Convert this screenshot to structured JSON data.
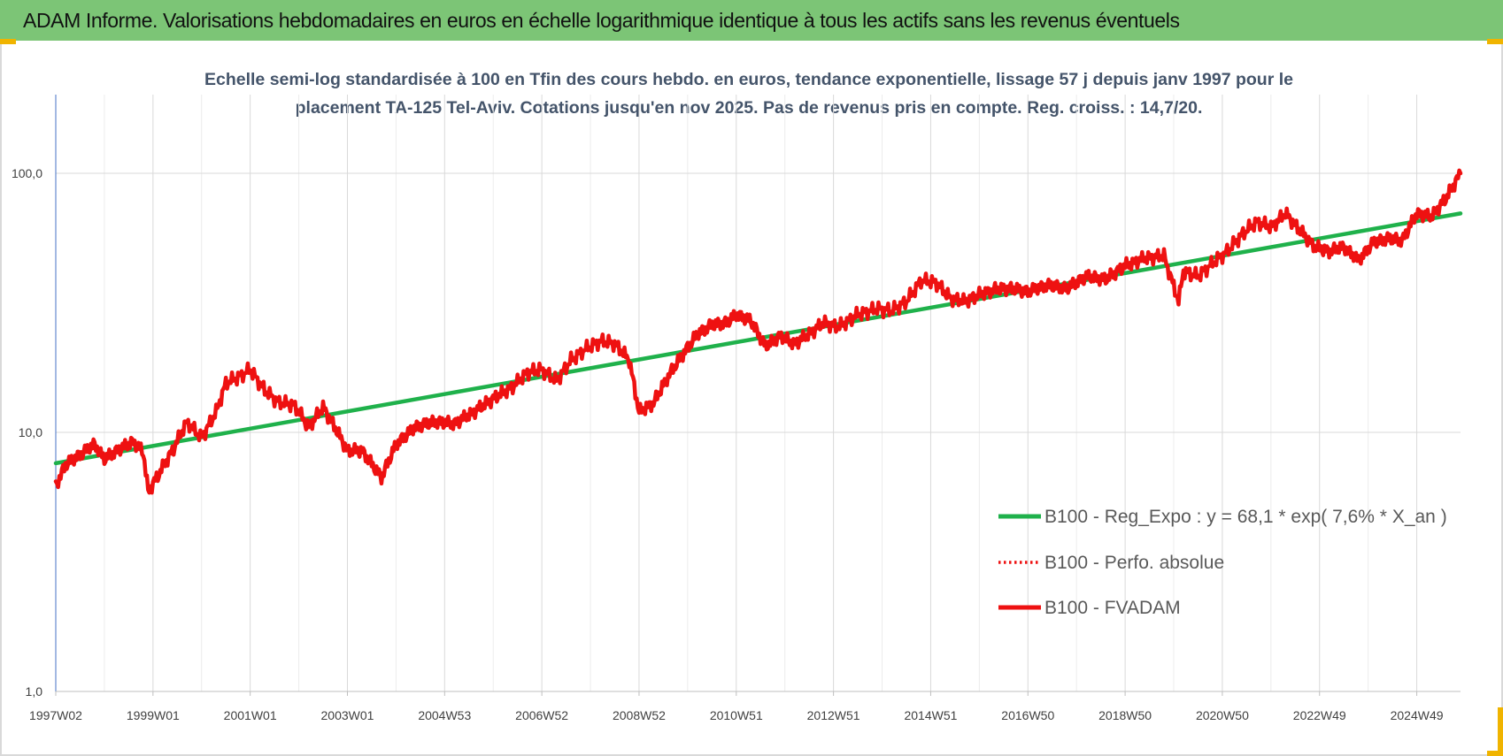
{
  "banner": {
    "title": "ADAM Informe. Valorisations hebdomadaires en euros en échelle logarithmique identique à tous les actifs sans les revenus éventuels"
  },
  "colors": {
    "banner_bg": "#7cc576",
    "regression": "#1fb14b",
    "fvadam": "#ee1111",
    "perfo": "#ee1111",
    "axis": "#4472c4",
    "grid": "#d9d9d9",
    "corner": "#f0b400"
  },
  "chart_data": {
    "type": "line",
    "title_lines": [
      "Echelle semi-log standardisée à 100 en Tfin des cours hebdo. en euros, tendance exponentielle, lissage 57 j depuis janv 1997 pour le",
      "placement TA-125 Tel-Aviv. Cotations jusqu'en nov 2025.  Pas de revenus pris en compte. Reg. croiss. : 14,7/20."
    ],
    "y_scale": "log",
    "ylim": [
      1,
      200
    ],
    "y_ticks": [
      {
        "value": 1,
        "label": "1,0"
      },
      {
        "value": 10,
        "label": "10,0"
      },
      {
        "value": 100,
        "label": "100,0"
      }
    ],
    "xlim": [
      1997.0,
      2025.9
    ],
    "x_ticks": [
      {
        "t": 1997.0,
        "label": "1997W02"
      },
      {
        "t": 1999.0,
        "label": "1999W01"
      },
      {
        "t": 2001.0,
        "label": "2001W01"
      },
      {
        "t": 2003.0,
        "label": "2003W01"
      },
      {
        "t": 2005.0,
        "label": "2004W53"
      },
      {
        "t": 2007.0,
        "label": "2006W52"
      },
      {
        "t": 2009.0,
        "label": "2008W52"
      },
      {
        "t": 2011.0,
        "label": "2010W51"
      },
      {
        "t": 2013.0,
        "label": "2012W51"
      },
      {
        "t": 2015.0,
        "label": "2014W51"
      },
      {
        "t": 2017.0,
        "label": "2016W50"
      },
      {
        "t": 2019.0,
        "label": "2018W50"
      },
      {
        "t": 2021.0,
        "label": "2020W50"
      },
      {
        "t": 2023.0,
        "label": "2022W49"
      },
      {
        "t": 2025.0,
        "label": "2024W49"
      }
    ],
    "legend": {
      "position": "bottom-right"
    },
    "series": [
      {
        "name": "B100 - Reg_Expo : y = 68,1 * exp( 7,6% *  X_an )",
        "style": "solid",
        "color": "#1fb14b",
        "x": [
          1997.0,
          2025.9
        ],
        "y": [
          7.6,
          70.0
        ]
      },
      {
        "name": "B100 - Perfo. absolue",
        "style": "dotted",
        "color": "#ee1111",
        "x": [],
        "y": []
      },
      {
        "name": "B100 - FVADAM",
        "style": "solid",
        "color": "#ee1111",
        "x": [
          1997.0,
          1997.2,
          1997.5,
          1997.8,
          1998.0,
          1998.3,
          1998.6,
          1998.8,
          1998.9,
          1999.1,
          1999.4,
          1999.7,
          2000.0,
          2000.3,
          2000.5,
          2000.8,
          2001.0,
          2001.3,
          2001.6,
          2001.9,
          2002.2,
          2002.5,
          2002.8,
          2003.0,
          2003.3,
          2003.7,
          2004.0,
          2004.4,
          2004.8,
          2005.2,
          2005.6,
          2006.0,
          2006.4,
          2006.7,
          2007.0,
          2007.3,
          2007.6,
          2007.9,
          2008.2,
          2008.5,
          2008.8,
          2009.0,
          2009.3,
          2009.6,
          2009.9,
          2010.2,
          2010.5,
          2010.8,
          2011.0,
          2011.3,
          2011.6,
          2011.9,
          2012.2,
          2012.5,
          2012.8,
          2013.1,
          2013.5,
          2013.9,
          2014.2,
          2014.5,
          2014.8,
          2015.1,
          2015.4,
          2015.7,
          2016.0,
          2016.3,
          2016.6,
          2017.0,
          2017.4,
          2017.8,
          2018.2,
          2018.6,
          2019.0,
          2019.4,
          2019.8,
          2020.1,
          2020.2,
          2020.5,
          2020.8,
          2021.1,
          2021.4,
          2021.7,
          2022.0,
          2022.3,
          2022.6,
          2022.9,
          2023.2,
          2023.5,
          2023.8,
          2024.1,
          2024.4,
          2024.7,
          2025.0,
          2025.3,
          2025.6,
          2025.9
        ],
        "y": [
          6.2,
          7.5,
          8.2,
          9.0,
          7.9,
          8.6,
          9.2,
          8.4,
          5.9,
          6.8,
          8.5,
          11.0,
          9.5,
          12.0,
          15.5,
          16.5,
          17.5,
          14.5,
          13.0,
          12.8,
          10.5,
          12.5,
          10.0,
          8.5,
          8.5,
          6.7,
          9.0,
          10.5,
          11.0,
          10.8,
          12.0,
          13.5,
          15.0,
          17.0,
          17.5,
          15.8,
          19.0,
          21.0,
          22.5,
          22.0,
          19.0,
          12.0,
          13.0,
          16.5,
          20.0,
          24.0,
          26.0,
          26.5,
          28.5,
          27.0,
          21.5,
          23.5,
          22.0,
          24.0,
          26.5,
          25.5,
          28.5,
          30.0,
          29.5,
          32.0,
          38.5,
          38.0,
          33.0,
          32.0,
          34.0,
          35.5,
          36.0,
          35.0,
          37.0,
          36.0,
          40.0,
          39.0,
          44.0,
          47.0,
          48.0,
          32.0,
          42.0,
          40.0,
          45.0,
          50.0,
          58.0,
          65.0,
          62.0,
          70.0,
          60.0,
          52.0,
          50.0,
          52.0,
          46.0,
          54.0,
          56.0,
          55.0,
          70.0,
          68.0,
          80.0,
          100.0
        ]
      }
    ]
  }
}
